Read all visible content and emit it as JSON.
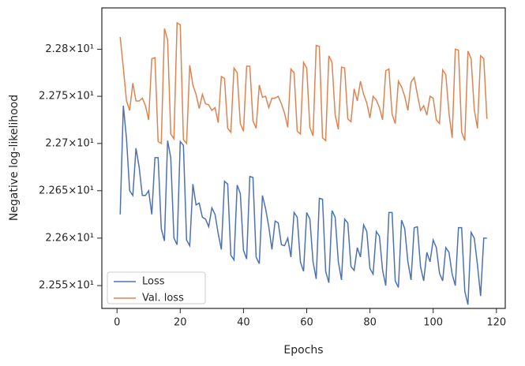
{
  "chart_data": {
    "type": "line",
    "x_label": "Epochs",
    "y_label": "Negative log-likelihood",
    "x": [
      1,
      2,
      3,
      4,
      5,
      6,
      7,
      8,
      9,
      10,
      11,
      12,
      13,
      14,
      15,
      16,
      17,
      18,
      19,
      20,
      21,
      22,
      23,
      24,
      25,
      26,
      27,
      28,
      29,
      30,
      31,
      32,
      33,
      34,
      35,
      36,
      37,
      38,
      39,
      40,
      41,
      42,
      43,
      44,
      45,
      46,
      47,
      48,
      49,
      50,
      51,
      52,
      53,
      54,
      55,
      56,
      57,
      58,
      59,
      60,
      61,
      62,
      63,
      64,
      65,
      66,
      67,
      68,
      69,
      70,
      71,
      72,
      73,
      74,
      75,
      76,
      77,
      78,
      79,
      80,
      81,
      82,
      83,
      84,
      85,
      86,
      87,
      88,
      89,
      90,
      91,
      92,
      93,
      94,
      95,
      96,
      97,
      98,
      99,
      100,
      101,
      102,
      103,
      104,
      105,
      106,
      107,
      108,
      109,
      110,
      111,
      112,
      113,
      114,
      115,
      116,
      117
    ],
    "series": [
      {
        "name": "Loss",
        "color": "#4c72b0",
        "values": [
          22.625,
          22.74,
          22.705,
          22.65,
          22.645,
          22.695,
          22.675,
          22.645,
          22.645,
          22.65,
          22.625,
          22.685,
          22.685,
          22.61,
          22.597,
          22.703,
          22.685,
          22.6,
          22.593,
          22.702,
          22.698,
          22.598,
          22.592,
          22.657,
          22.635,
          22.637,
          22.622,
          22.62,
          22.612,
          22.632,
          22.625,
          22.605,
          22.588,
          22.66,
          22.657,
          22.582,
          22.577,
          22.656,
          22.647,
          22.587,
          22.578,
          22.665,
          22.664,
          22.58,
          22.573,
          22.645,
          22.631,
          22.612,
          22.588,
          22.618,
          22.616,
          22.593,
          22.592,
          22.6,
          22.58,
          22.627,
          22.622,
          22.575,
          22.565,
          22.627,
          22.62,
          22.575,
          22.557,
          22.642,
          22.641,
          22.565,
          22.553,
          22.629,
          22.622,
          22.575,
          22.556,
          22.62,
          22.616,
          22.57,
          22.566,
          22.59,
          22.58,
          22.614,
          22.607,
          22.568,
          22.562,
          22.607,
          22.602,
          22.566,
          22.55,
          22.627,
          22.627,
          22.555,
          22.548,
          22.619,
          22.61,
          22.575,
          22.556,
          22.611,
          22.612,
          22.57,
          22.555,
          22.585,
          22.575,
          22.598,
          22.59,
          22.563,
          22.555,
          22.59,
          22.585,
          22.562,
          22.55,
          22.611,
          22.611,
          22.544,
          22.53,
          22.606,
          22.6,
          22.572,
          22.539,
          22.6,
          22.6
        ]
      },
      {
        "name": "Val. loss",
        "color": "#dd8452",
        "values": [
          22.813,
          22.78,
          22.745,
          22.735,
          22.764,
          22.745,
          22.745,
          22.748,
          22.74,
          22.725,
          22.79,
          22.791,
          22.702,
          22.7,
          22.822,
          22.81,
          22.71,
          22.705,
          22.828,
          22.826,
          22.704,
          22.7,
          22.783,
          22.762,
          22.752,
          22.737,
          22.752,
          22.742,
          22.741,
          22.735,
          22.738,
          22.722,
          22.771,
          22.769,
          22.716,
          22.712,
          22.78,
          22.775,
          22.721,
          22.713,
          22.782,
          22.782,
          22.724,
          22.716,
          22.762,
          22.749,
          22.75,
          22.738,
          22.748,
          22.748,
          22.75,
          22.742,
          22.732,
          22.717,
          22.779,
          22.775,
          22.713,
          22.71,
          22.786,
          22.78,
          22.717,
          22.708,
          22.804,
          22.803,
          22.706,
          22.703,
          22.793,
          22.786,
          22.73,
          22.715,
          22.781,
          22.78,
          22.726,
          22.723,
          22.758,
          22.745,
          22.766,
          22.752,
          22.743,
          22.727,
          22.75,
          22.746,
          22.738,
          22.725,
          22.777,
          22.779,
          22.731,
          22.721,
          22.766,
          22.76,
          22.75,
          22.735,
          22.765,
          22.77,
          22.752,
          22.735,
          22.74,
          22.73,
          22.75,
          22.748,
          22.725,
          22.721,
          22.778,
          22.773,
          22.732,
          22.706,
          22.8,
          22.799,
          22.712,
          22.703,
          22.798,
          22.79,
          22.736,
          22.716,
          22.793,
          22.79,
          22.726
        ]
      }
    ],
    "xlim": [
      -4.8,
      122.8
    ],
    "xticks": [
      0,
      20,
      40,
      60,
      80,
      100,
      120
    ],
    "ylim": [
      22.526,
      22.844
    ],
    "y_scale": "log",
    "yticks": [
      {
        "value": 22.55,
        "label": "2.255×10¹"
      },
      {
        "value": 22.6,
        "label": "2.26×10¹"
      },
      {
        "value": 22.65,
        "label": "2.265×10¹"
      },
      {
        "value": 22.7,
        "label": "2.27×10¹"
      },
      {
        "value": 22.75,
        "label": "2.275×10¹"
      },
      {
        "value": 22.8,
        "label": "2.28×10¹"
      }
    ],
    "grid": false,
    "legend_position": "lower-left"
  }
}
